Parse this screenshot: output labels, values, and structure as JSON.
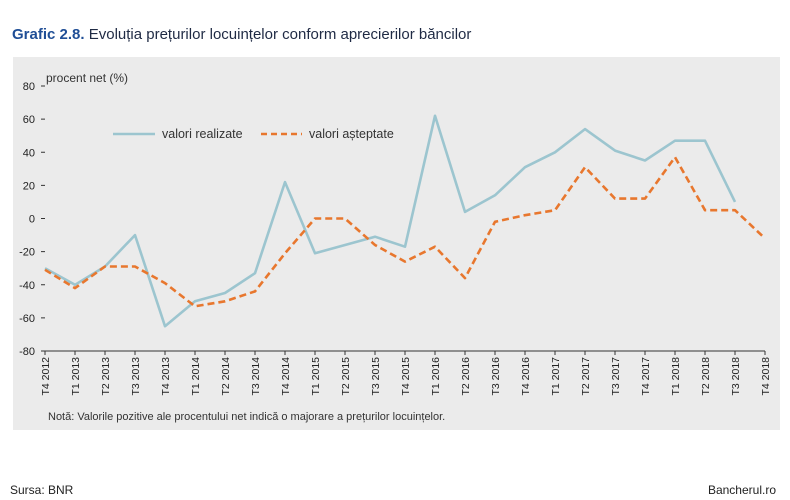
{
  "header": {
    "title_prefix": "Grafic 2.8.",
    "title_text": "Evoluția prețurilor locuințelor conform aprecierilor băncilor"
  },
  "footer": {
    "source": "Sursa: BNR",
    "site": "Bancherul.ro"
  },
  "chart_data": {
    "type": "line",
    "title": "Evoluția prețurilor locuințelor conform aprecierilor băncilor",
    "ylabel": "procent net (%)",
    "ylim": [
      -80,
      80
    ],
    "yticks": [
      80,
      60,
      40,
      20,
      0,
      -20,
      -40,
      -60,
      -80
    ],
    "grid": false,
    "legend_position": "top-left",
    "categories": [
      "T4 2012",
      "T1 2013",
      "T2 2013",
      "T3 2013",
      "T4 2013",
      "T1 2014",
      "T2 2014",
      "T3 2014",
      "T4 2014",
      "T1 2015",
      "T2 2015",
      "T3 2015",
      "T4 2015",
      "T1 2016",
      "T2 2016",
      "T3 2016",
      "T4 2016",
      "T1 2017",
      "T2 2017",
      "T3 2017",
      "T4 2017",
      "T1 2018",
      "T2 2018",
      "T3 2018",
      "T4 2018"
    ],
    "series": [
      {
        "name": "valori realizate",
        "color": "#9cc5cf",
        "style": "solid",
        "values": [
          -30,
          -40,
          -29,
          -10,
          -65,
          -50,
          -45,
          -33,
          22,
          -21,
          -16,
          -11,
          -17,
          62,
          4,
          14,
          31,
          40,
          54,
          41,
          35,
          47,
          47,
          10,
          null
        ]
      },
      {
        "name": "valori așteptate",
        "color": "#e8772e",
        "style": "dashed",
        "values": [
          -31,
          -42,
          -29,
          -29,
          -39,
          -53,
          -50,
          -44,
          -21,
          0,
          0,
          -16,
          -26,
          -17,
          -36,
          -2,
          2,
          5,
          31,
          12,
          12,
          37,
          5,
          5,
          -12
        ]
      }
    ],
    "note": "Notă: Valorile pozitive ale procentului net indică o majorare  a prețurilor locuințelor."
  }
}
